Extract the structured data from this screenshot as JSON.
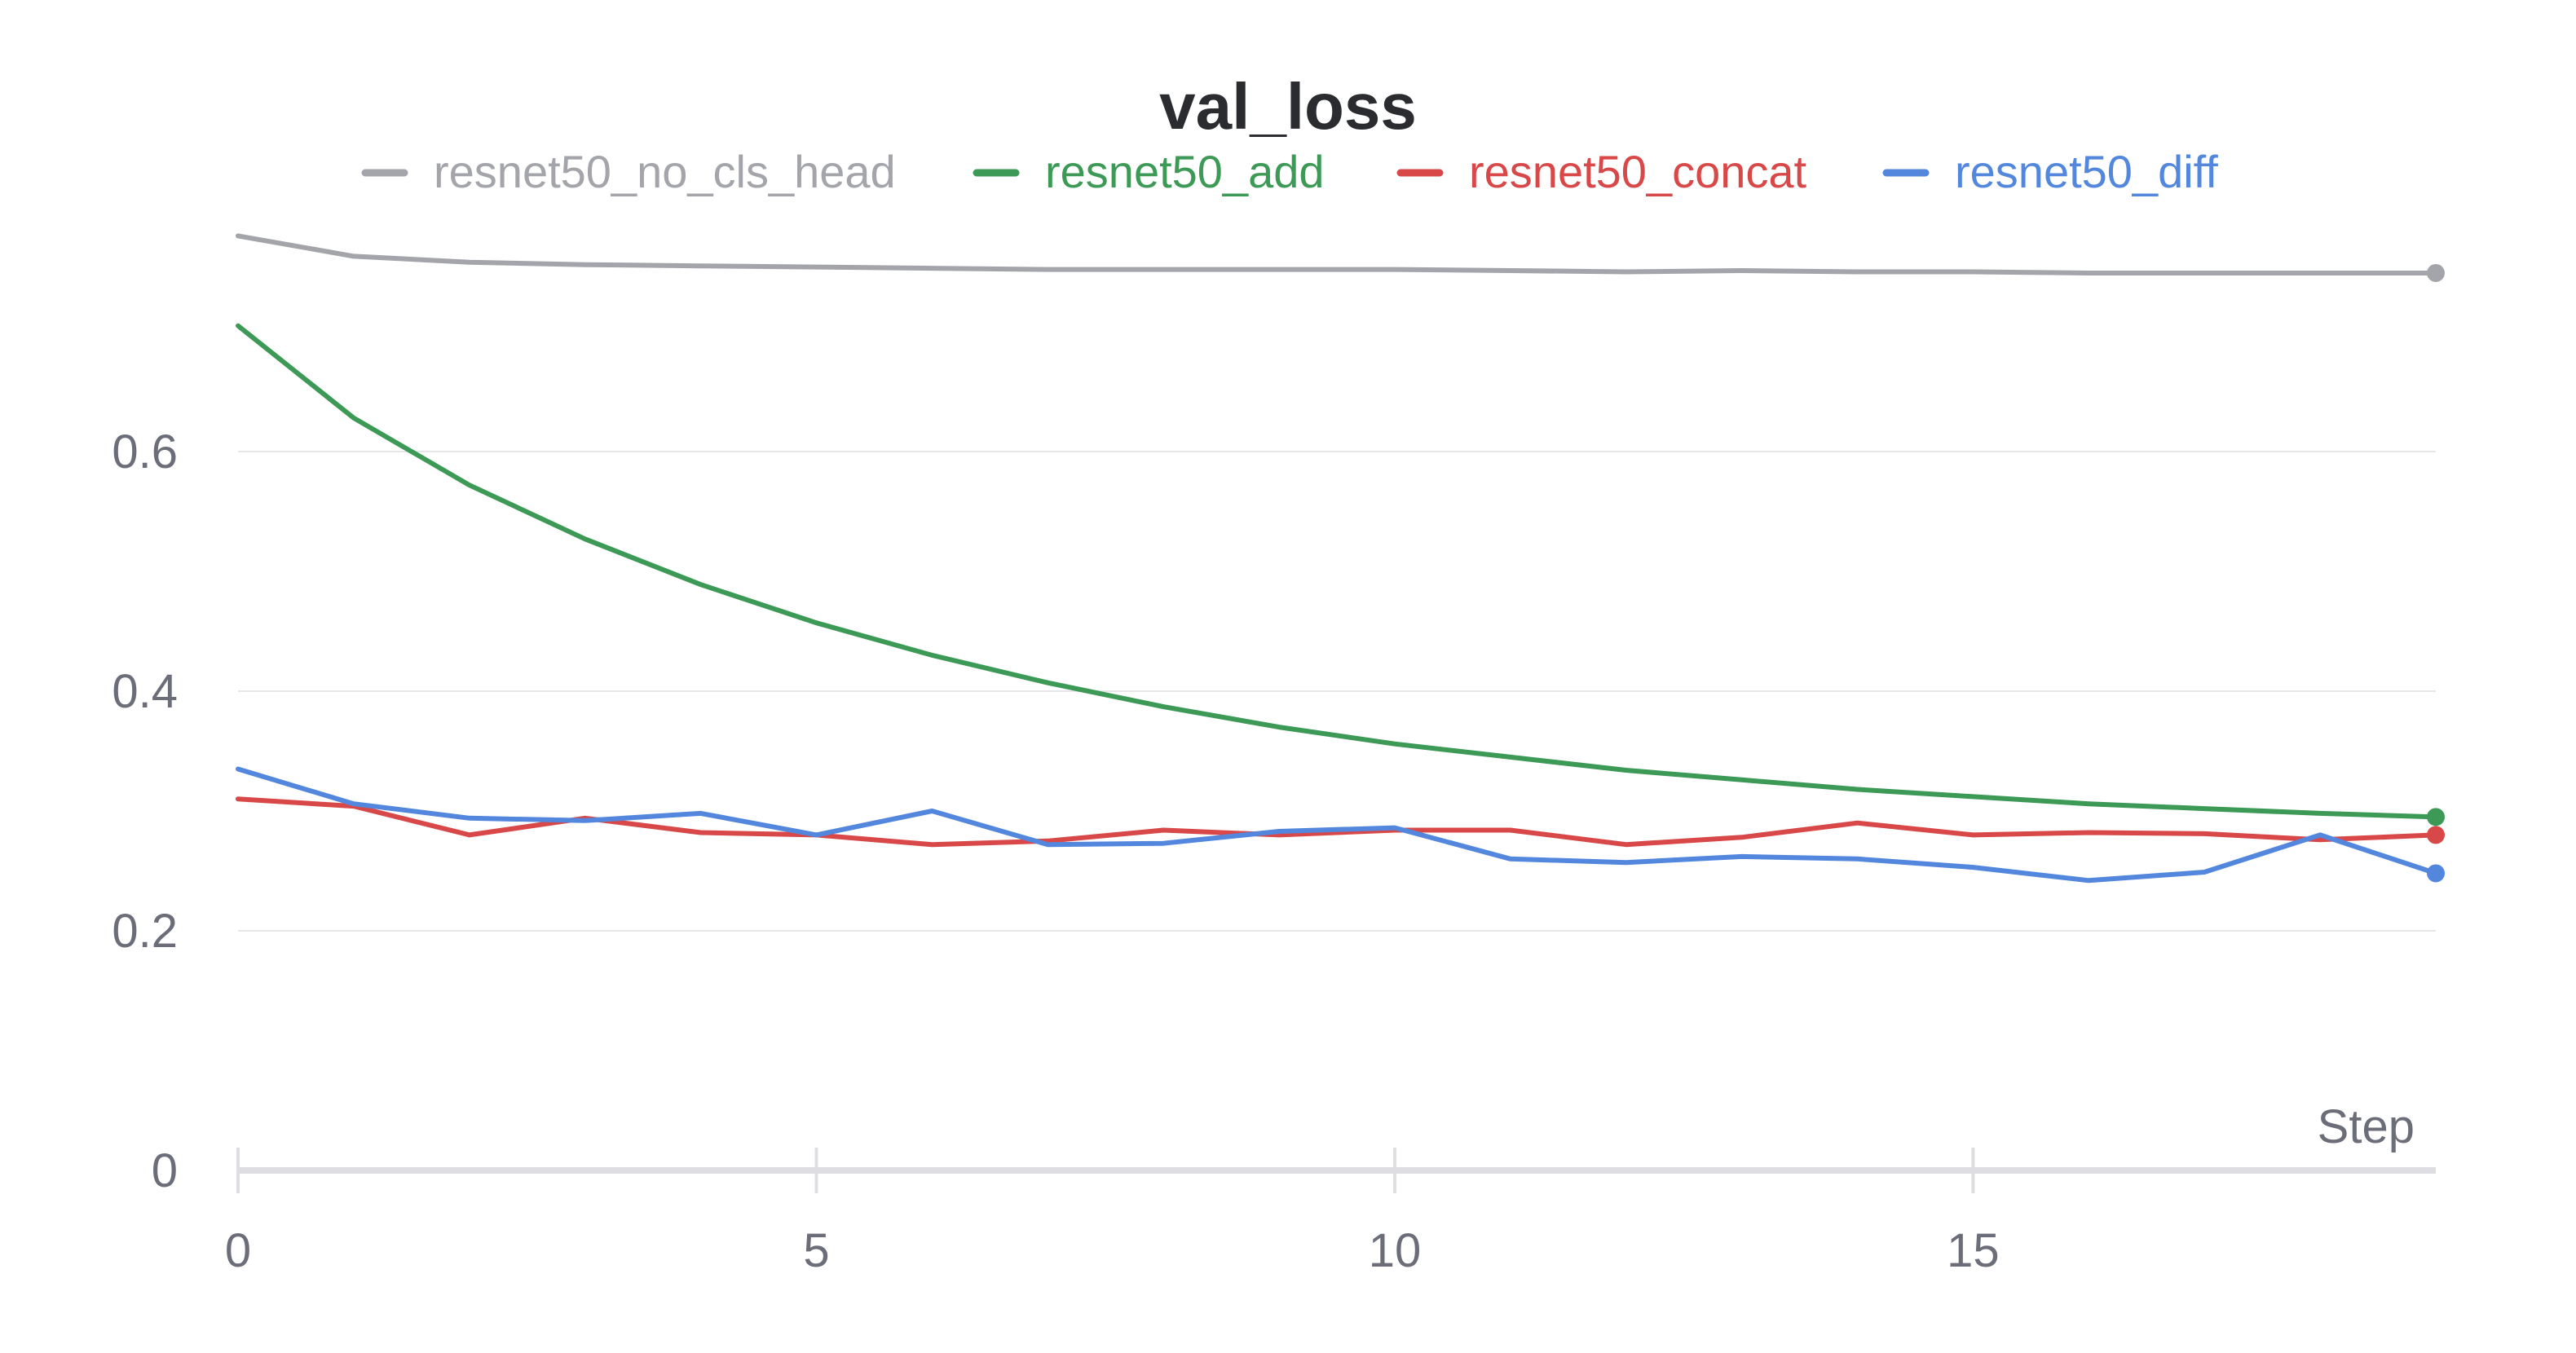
{
  "chart_data": {
    "type": "line",
    "title": "val_loss",
    "xlabel": "Step",
    "ylabel": "",
    "xlim": [
      0,
      19
    ],
    "ylim": [
      0,
      0.8
    ],
    "xticks": [
      0,
      5,
      10,
      15
    ],
    "xtick_labels": [
      "0",
      "5",
      "10",
      "15"
    ],
    "yticks": [
      0,
      0.2,
      0.4,
      0.6
    ],
    "ytick_labels": [
      "0",
      "0.2",
      "0.4",
      "0.6"
    ],
    "grid": "horizontal",
    "legend_position": "top",
    "x": [
      0,
      1,
      2,
      3,
      4,
      5,
      6,
      7,
      8,
      9,
      10,
      11,
      12,
      13,
      14,
      15,
      16,
      17,
      18,
      19
    ],
    "series": [
      {
        "name": "resnet50_no_cls_head",
        "color": "#a3a5ab",
        "values": [
          0.78,
          0.763,
          0.758,
          0.756,
          0.755,
          0.754,
          0.753,
          0.752,
          0.752,
          0.752,
          0.752,
          0.751,
          0.75,
          0.751,
          0.75,
          0.75,
          0.749,
          0.749,
          0.749,
          0.749
        ]
      },
      {
        "name": "resnet50_add",
        "color": "#3d9956",
        "values": [
          0.705,
          0.628,
          0.572,
          0.527,
          0.489,
          0.457,
          0.43,
          0.407,
          0.387,
          0.37,
          0.356,
          0.345,
          0.334,
          0.326,
          0.318,
          0.312,
          0.306,
          0.302,
          0.298,
          0.295
        ]
      },
      {
        "name": "resnet50_concat",
        "color": "#d94848",
        "values": [
          0.31,
          0.304,
          0.28,
          0.294,
          0.282,
          0.28,
          0.272,
          0.275,
          0.284,
          0.28,
          0.284,
          0.284,
          0.272,
          0.278,
          0.29,
          0.28,
          0.282,
          0.281,
          0.276,
          0.28
        ]
      },
      {
        "name": "resnet50_diff",
        "color": "#5387dd",
        "values": [
          0.335,
          0.306,
          0.294,
          0.292,
          0.298,
          0.28,
          0.3,
          0.272,
          0.273,
          0.283,
          0.286,
          0.26,
          0.257,
          0.262,
          0.26,
          0.253,
          0.242,
          0.249,
          0.28,
          0.248
        ]
      }
    ]
  }
}
